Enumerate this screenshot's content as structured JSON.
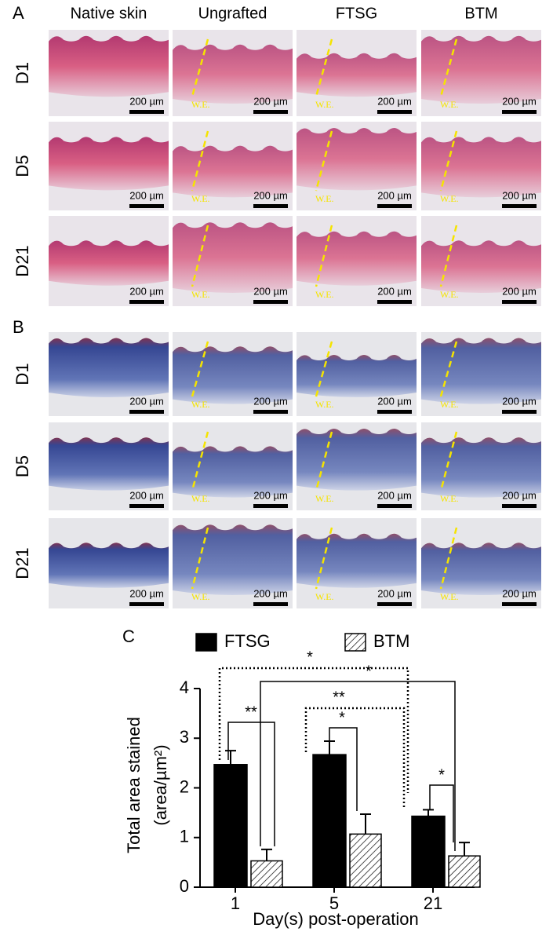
{
  "figure": {
    "panel_labels": [
      "A",
      "B",
      "C"
    ],
    "columns": [
      "Native skin",
      "Ungrafted",
      "FTSG",
      "BTM"
    ],
    "rows": [
      "D1",
      "D5",
      "D21"
    ],
    "scale_bar": "200 µm",
    "wound_edge": "W.E."
  },
  "chart_data": {
    "type": "bar",
    "ylabel": [
      "Total area stained",
      "(area/µm²)"
    ],
    "xlabel": "Day(s) post-operation",
    "categories": [
      "1",
      "5",
      "21"
    ],
    "series": [
      {
        "name": "FTSG",
        "color": "#000000",
        "hatch": false,
        "values": [
          2.47,
          2.67,
          1.43
        ],
        "errors": [
          0.28,
          0.27,
          0.13
        ]
      },
      {
        "name": "BTM",
        "color": "#ffffff",
        "hatch": true,
        "values": [
          0.53,
          1.07,
          0.63
        ],
        "errors": [
          0.23,
          0.4,
          0.27
        ]
      }
    ],
    "ylim": [
      0,
      4
    ],
    "yticks": [
      0,
      1,
      2,
      3,
      4
    ],
    "annotations": [
      "**",
      "*",
      "*",
      "**",
      "*",
      "*"
    ]
  }
}
